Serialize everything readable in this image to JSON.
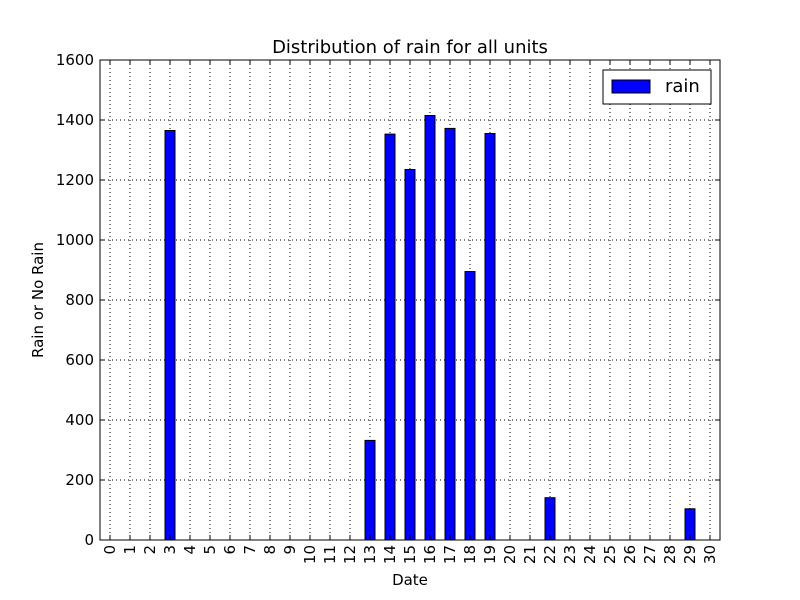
{
  "chart_data": {
    "type": "bar",
    "title": "Distribution of rain for all units",
    "xlabel": "Date",
    "ylabel": "Rain or No Rain",
    "categories": [
      "0",
      "1",
      "2",
      "3",
      "4",
      "5",
      "6",
      "7",
      "8",
      "9",
      "10",
      "11",
      "12",
      "13",
      "14",
      "15",
      "16",
      "17",
      "18",
      "19",
      "20",
      "21",
      "22",
      "23",
      "24",
      "25",
      "26",
      "27",
      "28",
      "29",
      "30"
    ],
    "series": [
      {
        "name": "rain",
        "color": "#0000ff",
        "values": [
          0,
          0,
          0,
          1365,
          0,
          0,
          0,
          0,
          0,
          0,
          0,
          0,
          0,
          332,
          1353,
          1235,
          1415,
          1372,
          895,
          1355,
          0,
          0,
          141,
          0,
          0,
          0,
          0,
          0,
          0,
          104,
          0
        ]
      }
    ],
    "ylim": [
      0,
      1600
    ],
    "yticks": [
      0,
      200,
      400,
      600,
      800,
      1000,
      1200,
      1400,
      1600
    ],
    "grid": true,
    "legend_position": "top-right"
  }
}
